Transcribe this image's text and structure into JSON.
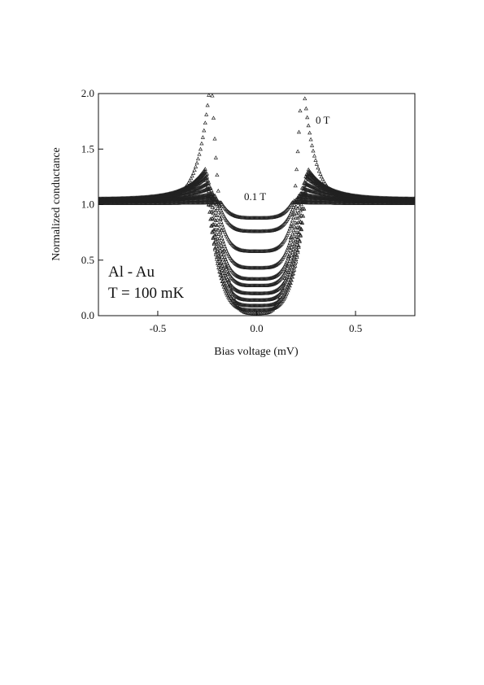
{
  "chart_data": {
    "type": "scatter",
    "title": "",
    "xlabel": "Bias voltage (mV)",
    "ylabel": "Normalized conductance",
    "xlim": [
      -0.8,
      0.8
    ],
    "ylim": [
      0.0,
      2.0
    ],
    "xticks": [
      -0.5,
      0.0,
      0.5
    ],
    "xtick_labels": [
      "-0.5",
      "0.0",
      "0.5"
    ],
    "yticks": [
      0.0,
      0.5,
      1.0,
      1.5,
      2.0
    ],
    "ytick_labels": [
      "0.0",
      "0.5",
      "1.0",
      "1.5",
      "2.0"
    ],
    "grid": false,
    "legend": "none",
    "annotations": [
      "Al - Au",
      "T = 100 mK"
    ],
    "curve_labels": [
      "0 T",
      "0.1 T"
    ],
    "marker": "open-triangle",
    "series": [
      {
        "name": "0 T",
        "min": 0.02,
        "peak": 2.2,
        "gap": 0.23,
        "width": 0.06,
        "tail": 1.02
      },
      {
        "min": 0.05,
        "peak": 1.32,
        "gap": 0.26,
        "width": 0.1,
        "tail": 1.05
      },
      {
        "min": 0.09,
        "peak": 1.3,
        "gap": 0.26,
        "width": 0.11,
        "tail": 1.05
      },
      {
        "min": 0.14,
        "peak": 1.28,
        "gap": 0.25,
        "width": 0.12,
        "tail": 1.05
      },
      {
        "min": 0.2,
        "peak": 1.25,
        "gap": 0.25,
        "width": 0.13,
        "tail": 1.04
      },
      {
        "min": 0.27,
        "peak": 1.2,
        "gap": 0.24,
        "width": 0.14,
        "tail": 1.04
      },
      {
        "min": 0.33,
        "peak": 1.15,
        "gap": 0.23,
        "width": 0.15,
        "tail": 1.04
      },
      {
        "min": 0.43,
        "peak": 1.1,
        "gap": 0.22,
        "width": 0.16,
        "tail": 1.03
      },
      {
        "min": 0.58,
        "peak": 1.08,
        "gap": 0.21,
        "width": 0.17,
        "tail": 1.03
      },
      {
        "min": 0.76,
        "peak": 1.05,
        "gap": 0.2,
        "width": 0.18,
        "tail": 1.02
      },
      {
        "name": "0.1 T",
        "min": 0.88,
        "peak": 1.02,
        "gap": 0.18,
        "width": 0.2,
        "tail": 1.01
      }
    ]
  }
}
